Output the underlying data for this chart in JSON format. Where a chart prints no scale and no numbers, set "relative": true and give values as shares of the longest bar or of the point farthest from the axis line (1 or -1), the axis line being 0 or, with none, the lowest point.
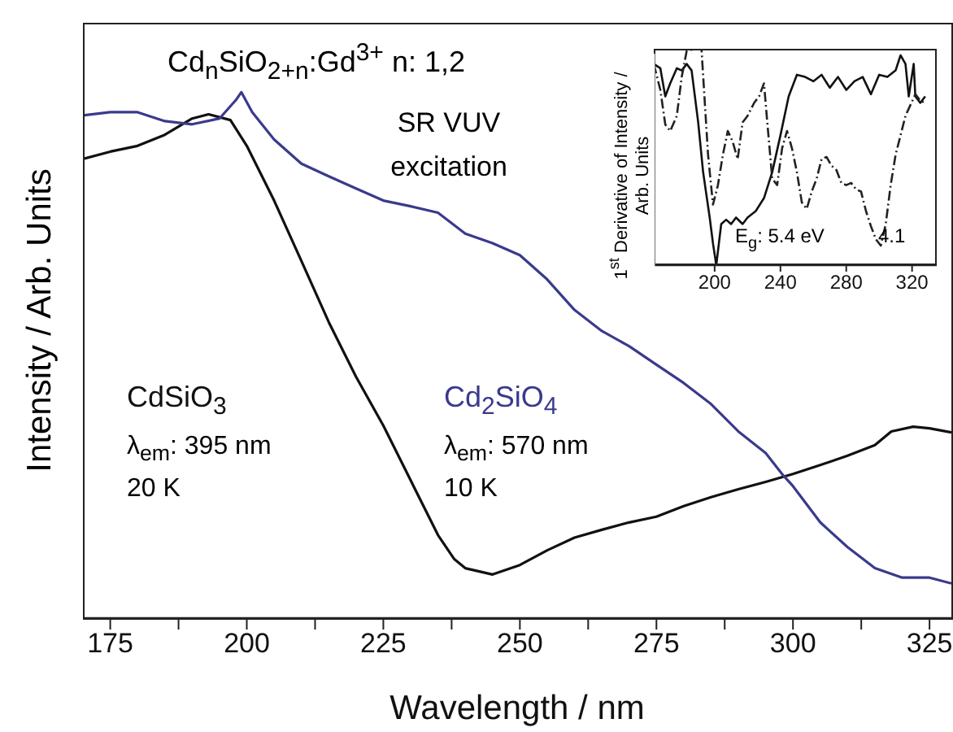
{
  "chart_data": [
    {
      "type": "line",
      "title": "Cd$_{n}$SiO$_{2+n}$:Gd$^{3+}$ n: 1,2",
      "xlabel": "Wavelength / nm",
      "ylabel": "Intensity / Arb. Units",
      "relative": true,
      "annotations": [
        "SR VUV excitation",
        "λ$_{em}$: 395 nm",
        "20 K",
        "λ$_{em}$: 570 nm",
        "10 K"
      ],
      "xlim": [
        170,
        329
      ],
      "xticks": [
        175,
        {
          "value": 187.5,
          "label": null
        },
        200,
        {
          "value": 212.5,
          "label": null
        },
        225,
        {
          "value": 237.5,
          "label": null
        },
        250,
        {
          "value": 262.5,
          "label": null
        },
        275,
        {
          "value": 287.5,
          "label": null
        },
        300,
        {
          "value": 312.5,
          "label": null
        },
        325
      ],
      "series": [
        {
          "name": "CdSiO$_{3}$",
          "color": "#111111",
          "x": [
            170,
            175,
            180,
            185,
            190,
            193,
            197,
            200,
            205,
            210,
            215,
            220,
            225,
            230,
            235,
            238,
            240,
            245,
            250,
            255,
            260,
            265,
            270,
            275,
            280,
            285,
            290,
            295,
            300,
            305,
            310,
            315,
            318,
            322,
            325,
            329
          ],
          "values": [
            0.873,
            0.887,
            0.898,
            0.919,
            0.95,
            0.958,
            0.947,
            0.898,
            0.794,
            0.679,
            0.563,
            0.459,
            0.366,
            0.262,
            0.158,
            0.112,
            0.095,
            0.083,
            0.101,
            0.129,
            0.153,
            0.168,
            0.182,
            0.193,
            0.213,
            0.23,
            0.245,
            0.259,
            0.274,
            0.291,
            0.309,
            0.329,
            0.355,
            0.364,
            0.361,
            0.353
          ]
        },
        {
          "name": "Cd$_{2}$SiO$_{4}$",
          "color": "#3a3a8c",
          "x": [
            170,
            175,
            180,
            185,
            190,
            195,
            198,
            199,
            201,
            205,
            210,
            215,
            220,
            225,
            230,
            235,
            240,
            245,
            250,
            255,
            260,
            265,
            270,
            275,
            280,
            285,
            290,
            295,
            298,
            300,
            305,
            310,
            315,
            320,
            325,
            329
          ],
          "values": [
            0.956,
            0.962,
            0.962,
            0.945,
            0.939,
            0.95,
            0.985,
            1,
            0.962,
            0.91,
            0.864,
            0.84,
            0.817,
            0.794,
            0.783,
            0.771,
            0.731,
            0.713,
            0.69,
            0.644,
            0.586,
            0.546,
            0.517,
            0.482,
            0.447,
            0.407,
            0.355,
            0.314,
            0.274,
            0.251,
            0.182,
            0.135,
            0.095,
            0.077,
            0.077,
            0.066
          ]
        }
      ]
    },
    {
      "type": "line",
      "ylabel": "1$^{st}$ Derivative of Intensity / Arb. Units",
      "relative": true,
      "annotations": [
        "E$_{g}$: 5.4 eV",
        "4.1"
      ],
      "xlim": [
        163,
        335
      ],
      "xticks": [
        200,
        240,
        280,
        320
      ],
      "series": [
        {
          "color": "#111111",
          "line_style": "solid",
          "x": [
            163,
            167,
            170,
            173,
            177,
            180,
            183,
            186,
            190,
            193,
            197,
            199,
            201,
            204,
            207,
            210,
            213,
            217,
            220,
            225,
            230,
            235,
            240,
            245,
            250,
            255,
            260,
            265,
            270,
            275,
            280,
            285,
            290,
            295,
            300,
            305,
            310,
            313,
            316,
            318,
            321,
            322,
            325,
            328
          ],
          "values": [
            0.93,
            0.91,
            0.78,
            0.84,
            0.91,
            0.9,
            0.93,
            0.9,
            0.66,
            0.43,
            0.22,
            0.1,
            0,
            0.19,
            0.21,
            0.19,
            0.22,
            0.19,
            0.22,
            0.25,
            0.31,
            0.43,
            0.6,
            0.78,
            0.88,
            0.87,
            0.85,
            0.88,
            0.82,
            0.87,
            0.81,
            0.85,
            0.87,
            0.79,
            0.88,
            0.87,
            0.9,
            0.97,
            0.93,
            0.78,
            0.93,
            0.78,
            0.75,
            0.78
          ]
        },
        {
          "color": "#222222",
          "line_style": "dashed",
          "x": [
            163,
            167,
            170,
            173,
            177,
            180,
            183,
            188,
            192,
            196,
            199,
            202,
            205,
            208,
            211,
            214,
            217,
            220,
            224,
            227,
            230,
            232,
            235,
            238,
            241,
            244,
            247,
            250,
            253,
            256,
            259,
            262,
            265,
            268,
            271,
            274,
            277,
            280,
            283,
            286,
            289,
            292,
            295,
            298,
            301,
            304,
            307,
            310,
            313,
            316,
            319,
            322,
            325,
            328
          ],
          "values": [
            0.93,
            0.81,
            0.65,
            0.62,
            0.69,
            0.87,
            0.99,
            1,
            1,
            0.51,
            0.28,
            0.37,
            0.51,
            0.62,
            0.57,
            0.49,
            0.66,
            0.69,
            0.75,
            0.78,
            0.84,
            0.66,
            0.4,
            0.37,
            0.54,
            0.62,
            0.54,
            0.43,
            0.29,
            0.26,
            0.34,
            0.4,
            0.49,
            0.5,
            0.46,
            0.44,
            0.38,
            0.37,
            0.38,
            0.35,
            0.34,
            0.25,
            0.18,
            0.12,
            0.09,
            0.19,
            0.37,
            0.51,
            0.6,
            0.69,
            0.74,
            0.79,
            0.76,
            0.75
          ]
        }
      ]
    }
  ]
}
